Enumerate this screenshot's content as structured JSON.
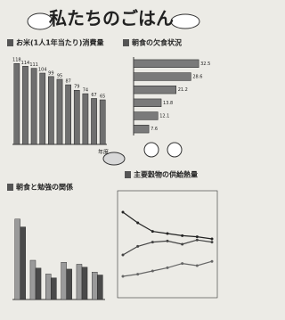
{
  "title": "私たちのごはん",
  "chart_data": [
    {
      "type": "bar",
      "title": "お米(1人1年当たり)消費量",
      "values": [
        118,
        114,
        111,
        104,
        99,
        95,
        87,
        79,
        74,
        67,
        65
      ],
      "ylim": [
        0,
        130
      ],
      "color": "#6f6f6f",
      "x_label": "年度"
    },
    {
      "type": "hbar",
      "title": "朝食の欠食状況",
      "values": [
        32.5,
        28.6,
        21.2,
        13.8,
        12.1,
        7.6
      ],
      "xlim": [
        0,
        40
      ],
      "color": "#7a7a7a"
    },
    {
      "type": "groupbar",
      "title": "朝食と勉強の関係",
      "ylim": [
        0,
        100
      ],
      "series": [
        {
          "color": "#9a9a9a",
          "values": [
            82,
            40,
            26,
            38,
            36,
            28
          ]
        },
        {
          "color": "#4a4a4a",
          "values": [
            74,
            32,
            22,
            31,
            33,
            25
          ]
        }
      ]
    },
    {
      "type": "line",
      "title": "主要穀物の供給熱量",
      "ylim": [
        0,
        100
      ],
      "series": [
        {
          "color": "#222",
          "values": [
            80,
            70,
            62,
            60,
            58,
            57,
            55
          ]
        },
        {
          "color": "#444",
          "values": [
            40,
            48,
            52,
            53,
            50,
            54,
            52
          ]
        },
        {
          "color": "#666",
          "values": [
            20,
            22,
            25,
            28,
            32,
            30,
            34
          ]
        }
      ]
    }
  ]
}
